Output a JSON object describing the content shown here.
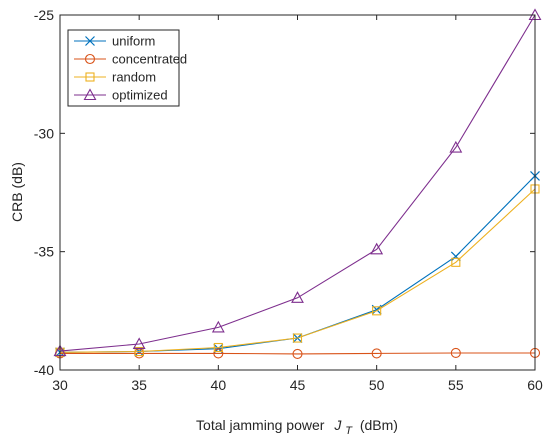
{
  "chart_data": {
    "type": "line",
    "title": "",
    "xlabel_prefix": "Total jamming power",
    "xlabel_var": "J",
    "xlabel_sub": "T",
    "xlabel_unit": "(dBm)",
    "ylabel": "CRB (dB)",
    "x": [
      30,
      35,
      40,
      45,
      50,
      55,
      60
    ],
    "xlim": [
      30,
      60
    ],
    "ylim": [
      -40,
      -25
    ],
    "xticks": [
      30,
      35,
      40,
      45,
      50,
      55,
      60
    ],
    "yticks": [
      -40,
      -35,
      -30,
      -25
    ],
    "xtick_labels": [
      "30",
      "35",
      "40",
      "45",
      "50",
      "55",
      "60"
    ],
    "ytick_labels": [
      "-40",
      "-35",
      "-30",
      "-25"
    ],
    "grid": false,
    "legend_position": "top-left",
    "series": [
      {
        "name": "uniform",
        "color": "#0072BD",
        "marker": "x",
        "values": [
          -39.25,
          -39.22,
          -39.1,
          -38.65,
          -37.45,
          -35.2,
          -31.8
        ]
      },
      {
        "name": "concentrated",
        "color": "#D95319",
        "marker": "circle",
        "values": [
          -39.3,
          -39.3,
          -39.3,
          -39.32,
          -39.3,
          -39.28,
          -39.28
        ]
      },
      {
        "name": "random",
        "color": "#EDB120",
        "marker": "square",
        "values": [
          -39.25,
          -39.22,
          -39.05,
          -38.65,
          -37.5,
          -35.45,
          -32.35
        ]
      },
      {
        "name": "optimized",
        "color": "#7E2F8E",
        "marker": "triangle",
        "values": [
          -39.2,
          -38.9,
          -38.2,
          -36.95,
          -34.9,
          -30.6,
          -25.0
        ]
      }
    ]
  }
}
